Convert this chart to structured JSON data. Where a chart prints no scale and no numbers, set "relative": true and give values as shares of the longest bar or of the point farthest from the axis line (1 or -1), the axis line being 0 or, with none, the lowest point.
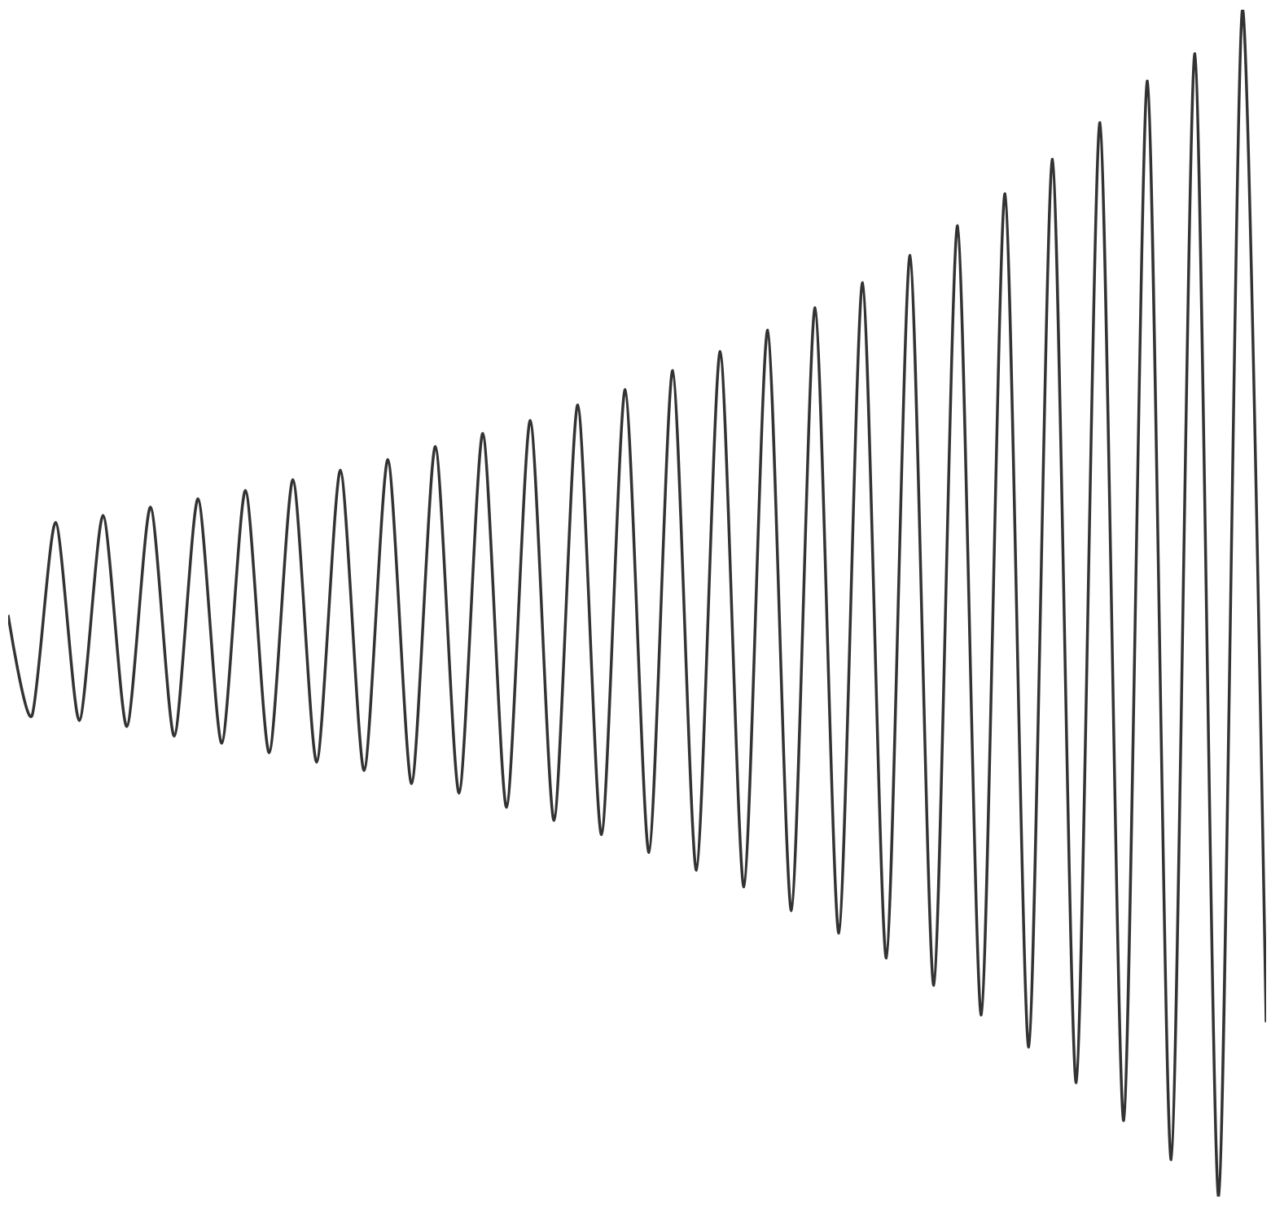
{
  "chart_data": {
    "type": "line",
    "relative": true,
    "color": "#333333",
    "categories": [
      null,
      null,
      null,
      null,
      null,
      null,
      null,
      null,
      null,
      null,
      null,
      null,
      null,
      null,
      null,
      null,
      null,
      null,
      null,
      null,
      null,
      null,
      null,
      null,
      null,
      null,
      null,
      null,
      null,
      null,
      null,
      null,
      null,
      null,
      null,
      null,
      null,
      null,
      null,
      null,
      null,
      null,
      null,
      null,
      null,
      null,
      null,
      null,
      null,
      null,
      null,
      null,
      null,
      null
    ],
    "values": [
      0.49,
      0.405,
      0.568,
      0.401,
      0.574,
      0.396,
      0.581,
      0.388,
      0.588,
      0.382,
      0.595,
      0.374,
      0.604,
      0.366,
      0.612,
      0.359,
      0.621,
      0.348,
      0.632,
      0.34,
      0.643,
      0.328,
      0.654,
      0.317,
      0.667,
      0.305,
      0.68,
      0.29,
      0.696,
      0.275,
      0.712,
      0.261,
      0.73,
      0.241,
      0.749,
      0.222,
      0.77,
      0.201,
      0.793,
      0.178,
      0.818,
      0.153,
      0.845,
      0.126,
      0.874,
      0.096,
      0.905,
      0.064,
      0.94,
      0.031,
      0.963,
      0,
      1,
      0.147
    ]
  }
}
